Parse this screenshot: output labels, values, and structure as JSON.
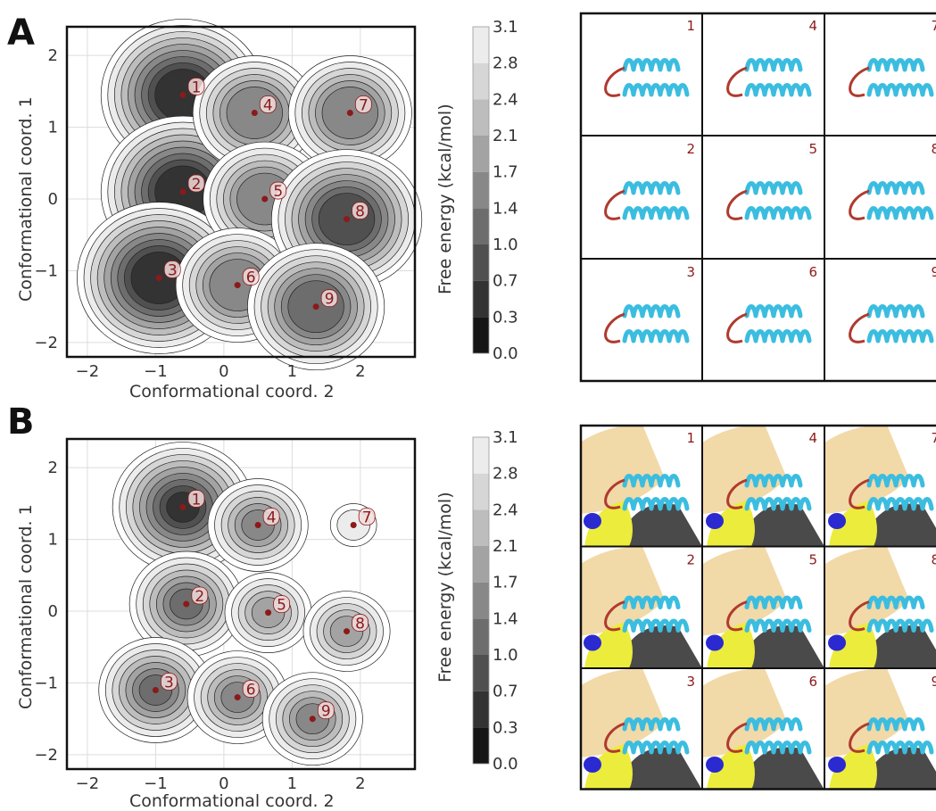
{
  "chart_data": [
    {
      "panel": "A",
      "type": "contour",
      "xlabel": "Conformational coord. 2",
      "ylabel": "Conformational coord. 1",
      "xlim": [
        -2.3,
        2.8
      ],
      "ylim": [
        -2.2,
        2.4
      ],
      "xticks": [
        -2,
        -1,
        0,
        1,
        2
      ],
      "yticks": [
        -2,
        -1,
        0,
        1,
        2
      ],
      "colorbar_label": "Free energy (kcal/mol)",
      "colorbar_ticks": [
        "0.0",
        "0.3",
        "0.7",
        "1.0",
        "1.4",
        "1.7",
        "2.1",
        "2.4",
        "2.8",
        "3.1"
      ],
      "states": [
        {
          "label": "1",
          "x": -0.6,
          "y": 1.45
        },
        {
          "label": "2",
          "x": -0.6,
          "y": 0.1
        },
        {
          "label": "3",
          "x": -0.95,
          "y": -1.1
        },
        {
          "label": "4",
          "x": 0.45,
          "y": 1.2
        },
        {
          "label": "5",
          "x": 0.6,
          "y": 0.0
        },
        {
          "label": "6",
          "x": 0.2,
          "y": -1.2
        },
        {
          "label": "7",
          "x": 1.85,
          "y": 1.2
        },
        {
          "label": "8",
          "x": 1.8,
          "y": -0.28
        },
        {
          "label": "9",
          "x": 1.35,
          "y": -1.5
        }
      ],
      "structure_grid": [
        "1",
        "4",
        "7",
        "2",
        "5",
        "8",
        "3",
        "6",
        "9"
      ]
    },
    {
      "panel": "B",
      "type": "contour",
      "xlabel": "Conformational coord. 2",
      "ylabel": "Conformational coord. 1",
      "xlim": [
        -2.3,
        2.8
      ],
      "ylim": [
        -2.2,
        2.4
      ],
      "xticks": [
        -2,
        -1,
        0,
        1,
        2
      ],
      "yticks": [
        -2,
        -1,
        0,
        1,
        2
      ],
      "colorbar_label": "Free energy (kcal/mol)",
      "colorbar_ticks": [
        "0.0",
        "0.3",
        "0.7",
        "1.0",
        "1.4",
        "1.7",
        "2.1",
        "2.4",
        "2.8",
        "3.1"
      ],
      "states": [
        {
          "label": "1",
          "x": -0.6,
          "y": 1.45
        },
        {
          "label": "2",
          "x": -0.55,
          "y": 0.1
        },
        {
          "label": "3",
          "x": -1.0,
          "y": -1.1
        },
        {
          "label": "4",
          "x": 0.5,
          "y": 1.2
        },
        {
          "label": "5",
          "x": 0.65,
          "y": -0.02
        },
        {
          "label": "6",
          "x": 0.2,
          "y": -1.2
        },
        {
          "label": "7",
          "x": 1.9,
          "y": 1.2
        },
        {
          "label": "8",
          "x": 1.8,
          "y": -0.28
        },
        {
          "label": "9",
          "x": 1.3,
          "y": -1.5
        }
      ],
      "structure_grid": [
        "1",
        "4",
        "7",
        "2",
        "5",
        "8",
        "3",
        "6",
        "9"
      ]
    }
  ],
  "panels": {
    "a": {
      "letter": "A"
    },
    "b": {
      "letter": "B"
    }
  },
  "colors": {
    "state_dot": "#8b1a1a",
    "helix": "#3bbde0",
    "loop": "#b03a2e",
    "surface_tan": "#f2d9a8",
    "surface_yellow": "#ecec3c",
    "surface_dark": "#4a4a4a",
    "surface_blue": "#2a2ad0"
  }
}
